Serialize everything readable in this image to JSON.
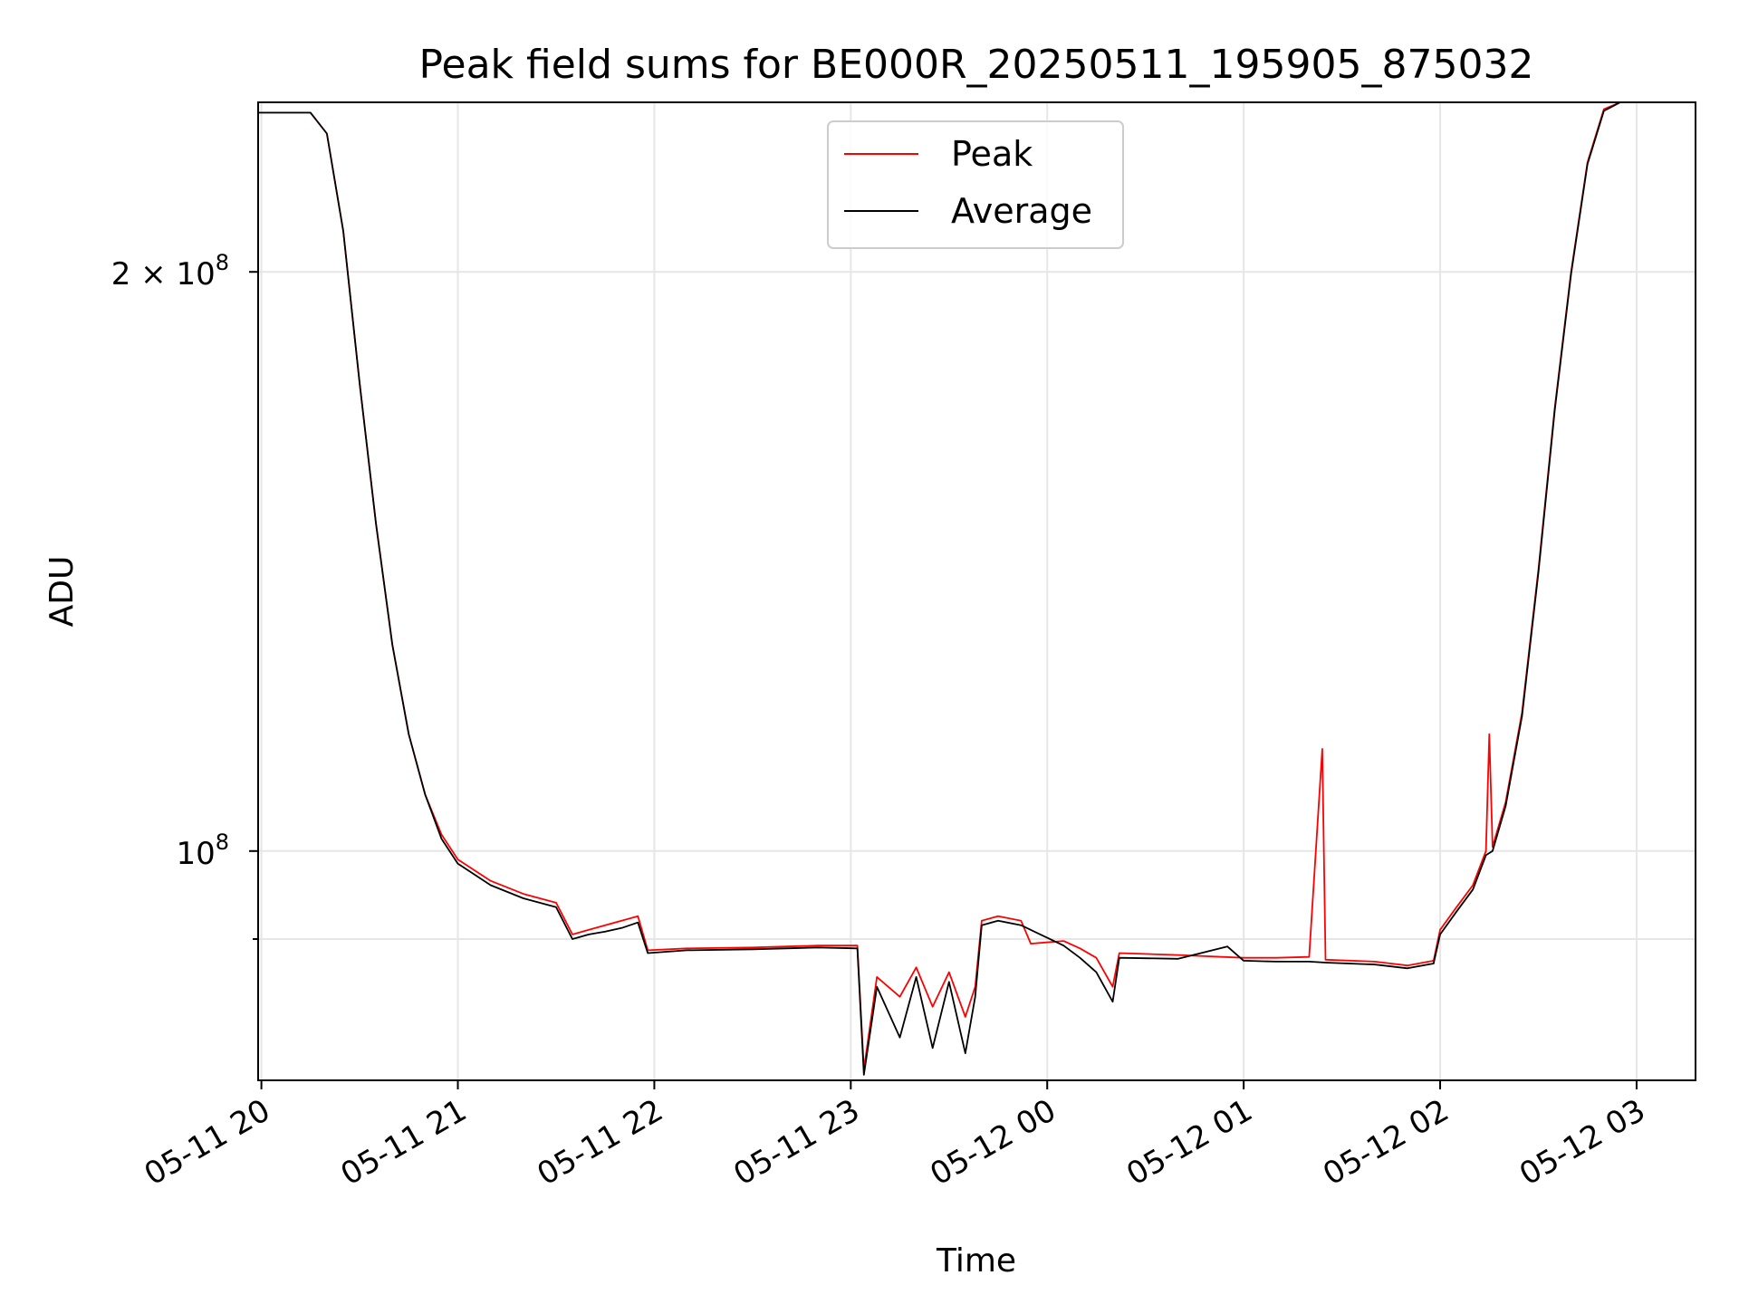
{
  "chart_data": {
    "type": "line",
    "title": "Peak field sums for BE000R_20250511_195905_875032",
    "xlabel": "Time",
    "ylabel": "ADU",
    "yscale": "log",
    "grid": true,
    "legend_position": "top-center",
    "xlim": [
      "2025-05-11 19:59",
      "2025-05-12 03:18"
    ],
    "ylim": [
      76000000,
      245000000
    ],
    "x_ticks": [
      {
        "value": "2025-05-11 20:00",
        "label": "05-11 20"
      },
      {
        "value": "2025-05-11 21:00",
        "label": "05-11 21"
      },
      {
        "value": "2025-05-11 22:00",
        "label": "05-11 22"
      },
      {
        "value": "2025-05-11 23:00",
        "label": "05-11 23"
      },
      {
        "value": "2025-05-12 00:00",
        "label": "05-12 00"
      },
      {
        "value": "2025-05-12 01:00",
        "label": "05-12 01"
      },
      {
        "value": "2025-05-12 02:00",
        "label": "05-12 02"
      },
      {
        "value": "2025-05-12 03:00",
        "label": "05-12 03"
      }
    ],
    "y_ticks": [
      {
        "value": 200000000,
        "base": "2 × 10",
        "exp": "8"
      },
      {
        "value": 100000000,
        "base": "10",
        "exp": "8"
      }
    ],
    "y_minor_ticks": [
      90000000
    ],
    "series": [
      {
        "name": "Peak",
        "color": "#ff0000",
        "points": [
          [
            "2025-05-11 19:59",
            242000000
          ],
          [
            "2025-05-11 20:15",
            242000000
          ],
          [
            "2025-05-11 20:20",
            236000000
          ],
          [
            "2025-05-11 20:25",
            210000000
          ],
          [
            "2025-05-11 20:30",
            175000000
          ],
          [
            "2025-05-11 20:35",
            148000000
          ],
          [
            "2025-05-11 20:40",
            128000000
          ],
          [
            "2025-05-11 20:45",
            115000000
          ],
          [
            "2025-05-11 20:50",
            107000000
          ],
          [
            "2025-05-11 20:55",
            102000000
          ],
          [
            "2025-05-11 21:00",
            99000000
          ],
          [
            "2025-05-11 21:10",
            96500000
          ],
          [
            "2025-05-11 21:20",
            95000000
          ],
          [
            "2025-05-11 21:30",
            94000000
          ],
          [
            "2025-05-11 21:35",
            90500000
          ],
          [
            "2025-05-11 21:40",
            91000000
          ],
          [
            "2025-05-11 21:45",
            91500000
          ],
          [
            "2025-05-11 21:50",
            92000000
          ],
          [
            "2025-05-11 21:55",
            92500000
          ],
          [
            "2025-05-11 21:58",
            88800000
          ],
          [
            "2025-05-11 22:10",
            89000000
          ],
          [
            "2025-05-11 22:30",
            89100000
          ],
          [
            "2025-05-11 22:50",
            89300000
          ],
          [
            "2025-05-11 23:02",
            89300000
          ],
          [
            "2025-05-11 23:04",
            77000000
          ],
          [
            "2025-05-11 23:08",
            86000000
          ],
          [
            "2025-05-11 23:15",
            84000000
          ],
          [
            "2025-05-11 23:20",
            87000000
          ],
          [
            "2025-05-11 23:25",
            83000000
          ],
          [
            "2025-05-11 23:30",
            86500000
          ],
          [
            "2025-05-11 23:35",
            82000000
          ],
          [
            "2025-05-11 23:38",
            85000000
          ],
          [
            "2025-05-11 23:40",
            92000000
          ],
          [
            "2025-05-11 23:45",
            92500000
          ],
          [
            "2025-05-11 23:52",
            92000000
          ],
          [
            "2025-05-11 23:55",
            89500000
          ],
          [
            "2025-05-12 00:05",
            89800000
          ],
          [
            "2025-05-12 00:10",
            89000000
          ],
          [
            "2025-05-12 00:15",
            88000000
          ],
          [
            "2025-05-12 00:20",
            85000000
          ],
          [
            "2025-05-12 00:22",
            88500000
          ],
          [
            "2025-05-12 00:40",
            88300000
          ],
          [
            "2025-05-12 01:00",
            88000000
          ],
          [
            "2025-05-12 01:10",
            88000000
          ],
          [
            "2025-05-12 01:20",
            88100000
          ],
          [
            "2025-05-12 01:24",
            113000000
          ],
          [
            "2025-05-12 01:25",
            87800000
          ],
          [
            "2025-05-12 01:40",
            87600000
          ],
          [
            "2025-05-12 01:50",
            87200000
          ],
          [
            "2025-05-12 01:58",
            87700000
          ],
          [
            "2025-05-12 02:00",
            91000000
          ],
          [
            "2025-05-12 02:05",
            93500000
          ],
          [
            "2025-05-12 02:10",
            96000000
          ],
          [
            "2025-05-12 02:14",
            100000000
          ],
          [
            "2025-05-12 02:15",
            115000000
          ],
          [
            "2025-05-12 02:16",
            100500000
          ],
          [
            "2025-05-12 02:20",
            106000000
          ],
          [
            "2025-05-12 02:25",
            118000000
          ],
          [
            "2025-05-12 02:30",
            140000000
          ],
          [
            "2025-05-12 02:35",
            170000000
          ],
          [
            "2025-05-12 02:40",
            200000000
          ],
          [
            "2025-05-12 02:45",
            228000000
          ],
          [
            "2025-05-12 02:50",
            243000000
          ],
          [
            "2025-05-12 02:55",
            245000000
          ]
        ]
      },
      {
        "name": "Average",
        "color": "#000000",
        "points": [
          [
            "2025-05-11 19:59",
            242000000
          ],
          [
            "2025-05-11 20:15",
            242000000
          ],
          [
            "2025-05-11 20:20",
            236000000
          ],
          [
            "2025-05-11 20:25",
            210000000
          ],
          [
            "2025-05-11 20:30",
            175000000
          ],
          [
            "2025-05-11 20:35",
            148000000
          ],
          [
            "2025-05-11 20:40",
            128000000
          ],
          [
            "2025-05-11 20:45",
            115000000
          ],
          [
            "2025-05-11 20:50",
            107000000
          ],
          [
            "2025-05-11 20:55",
            101500000
          ],
          [
            "2025-05-11 21:00",
            98500000
          ],
          [
            "2025-05-11 21:10",
            96000000
          ],
          [
            "2025-05-11 21:20",
            94500000
          ],
          [
            "2025-05-11 21:30",
            93500000
          ],
          [
            "2025-05-11 21:35",
            90000000
          ],
          [
            "2025-05-11 21:40",
            90500000
          ],
          [
            "2025-05-11 21:45",
            90800000
          ],
          [
            "2025-05-11 21:50",
            91200000
          ],
          [
            "2025-05-11 21:55",
            91800000
          ],
          [
            "2025-05-11 21:58",
            88500000
          ],
          [
            "2025-05-11 22:10",
            88800000
          ],
          [
            "2025-05-11 22:30",
            88900000
          ],
          [
            "2025-05-11 22:50",
            89100000
          ],
          [
            "2025-05-11 23:02",
            89000000
          ],
          [
            "2025-05-11 23:04",
            76500000
          ],
          [
            "2025-05-11 23:08",
            85000000
          ],
          [
            "2025-05-11 23:15",
            80000000
          ],
          [
            "2025-05-11 23:20",
            86000000
          ],
          [
            "2025-05-11 23:25",
            79000000
          ],
          [
            "2025-05-11 23:30",
            85500000
          ],
          [
            "2025-05-11 23:35",
            78500000
          ],
          [
            "2025-05-11 23:38",
            84000000
          ],
          [
            "2025-05-11 23:40",
            91500000
          ],
          [
            "2025-05-11 23:45",
            92000000
          ],
          [
            "2025-05-11 23:52",
            91500000
          ],
          [
            "2025-05-12 00:55",
            89200000
          ],
          [
            "2025-05-12 00:05",
            89300000
          ],
          [
            "2025-05-12 00:10",
            88000000
          ],
          [
            "2025-05-12 00:15",
            86500000
          ],
          [
            "2025-05-12 00:20",
            83500000
          ],
          [
            "2025-05-12 00:22",
            88000000
          ],
          [
            "2025-05-12 00:40",
            87900000
          ],
          [
            "2025-05-12 01:00",
            87700000
          ],
          [
            "2025-05-12 01:10",
            87600000
          ],
          [
            "2025-05-12 01:20",
            87600000
          ],
          [
            "2025-05-12 01:25",
            87500000
          ],
          [
            "2025-05-12 01:40",
            87300000
          ],
          [
            "2025-05-12 01:50",
            86900000
          ],
          [
            "2025-05-12 01:58",
            87400000
          ],
          [
            "2025-05-12 02:00",
            90500000
          ],
          [
            "2025-05-12 02:05",
            93000000
          ],
          [
            "2025-05-12 02:10",
            95500000
          ],
          [
            "2025-05-12 02:14",
            99500000
          ],
          [
            "2025-05-12 02:16",
            100000000
          ],
          [
            "2025-05-12 02:20",
            105500000
          ],
          [
            "2025-05-12 02:25",
            117500000
          ],
          [
            "2025-05-12 02:30",
            139500000
          ],
          [
            "2025-05-12 02:35",
            169500000
          ],
          [
            "2025-05-12 02:40",
            199500000
          ],
          [
            "2025-05-12 02:45",
            227500000
          ],
          [
            "2025-05-12 02:50",
            242500000
          ],
          [
            "2025-05-12 02:55",
            245000000
          ]
        ]
      }
    ]
  }
}
